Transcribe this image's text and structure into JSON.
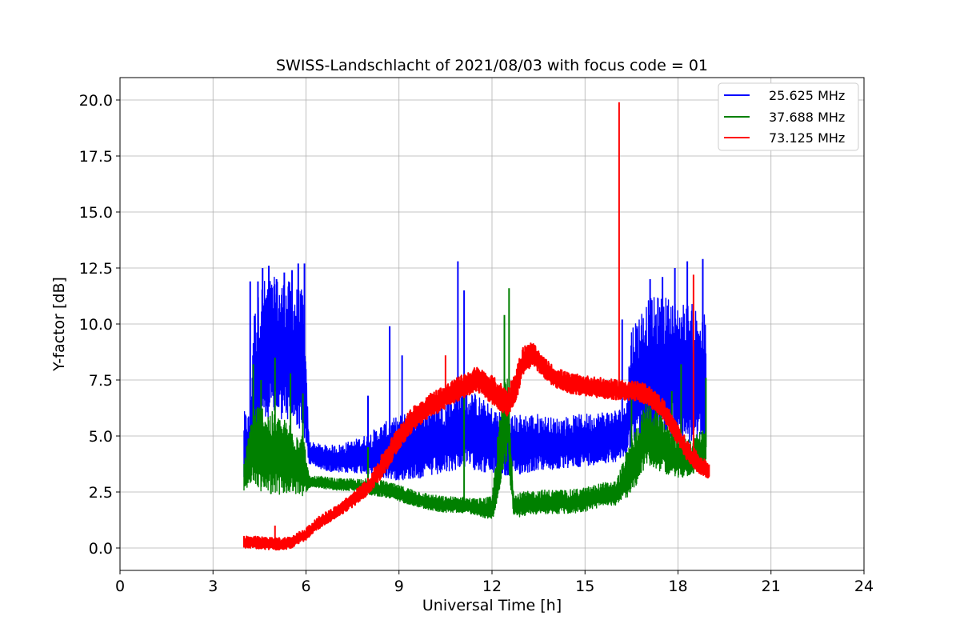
{
  "chart_data": {
    "type": "line",
    "title": "SWISS-Landschlacht of 2021/08/03 with focus code = 01",
    "xlabel": "Universal Time [h]",
    "ylabel": "Y-factor [dB]",
    "xlim": [
      0,
      24
    ],
    "ylim": [
      -1,
      21
    ],
    "xticks": [
      0,
      3,
      6,
      9,
      12,
      15,
      18,
      21,
      24
    ],
    "xtick_labels": [
      "0",
      "3",
      "6",
      "9",
      "12",
      "15",
      "18",
      "21",
      "24"
    ],
    "yticks": [
      0.0,
      2.5,
      5.0,
      7.5,
      10.0,
      12.5,
      15.0,
      17.5,
      20.0
    ],
    "ytick_labels": [
      "0.0",
      "2.5",
      "5.0",
      "7.5",
      "10.0",
      "12.5",
      "15.0",
      "17.5",
      "20.0"
    ],
    "grid": true,
    "legend_position": "top-right",
    "series": [
      {
        "name": "25.625 MHz",
        "color": "#0000ff",
        "x": [
          4.0,
          4.2,
          4.3,
          4.6,
          5.0,
          5.5,
          5.9,
          6.1,
          6.5,
          7.0,
          7.5,
          8.0,
          8.5,
          9.0,
          9.5,
          10.0,
          10.5,
          11.0,
          11.5,
          12.0,
          12.5,
          13.0,
          13.5,
          14.0,
          14.5,
          15.0,
          15.5,
          16.0,
          16.3,
          16.5,
          17.0,
          17.5,
          18.0,
          18.5,
          18.9
        ],
        "y": [
          4.3,
          4.5,
          7.0,
          8.5,
          8.6,
          8.4,
          8.0,
          4.2,
          4.0,
          3.9,
          4.0,
          4.1,
          4.2,
          4.3,
          4.5,
          4.6,
          4.8,
          5.2,
          5.0,
          4.6,
          4.4,
          4.5,
          4.6,
          4.5,
          4.6,
          4.7,
          4.8,
          4.9,
          5.0,
          7.0,
          7.6,
          7.8,
          7.5,
          7.4,
          7.0
        ],
        "band": [
          1.8,
          1.5,
          3.5,
          3.5,
          3.5,
          3.5,
          3.5,
          0.6,
          0.6,
          0.7,
          0.8,
          1.0,
          1.4,
          1.6,
          1.8,
          1.8,
          1.9,
          2.0,
          1.9,
          1.7,
          1.5,
          1.5,
          1.4,
          1.3,
          1.3,
          1.3,
          1.3,
          1.3,
          1.3,
          3.0,
          3.5,
          3.5,
          3.5,
          3.5,
          3.5
        ]
      },
      {
        "name": "37.688 MHz",
        "color": "#008000",
        "x": [
          4.0,
          4.3,
          4.6,
          5.0,
          5.5,
          5.9,
          6.1,
          6.5,
          7.0,
          7.5,
          8.0,
          8.5,
          9.0,
          9.5,
          10.0,
          10.5,
          11.0,
          11.5,
          12.0,
          12.2,
          12.5,
          12.7,
          13.0,
          13.5,
          14.0,
          14.5,
          15.0,
          15.5,
          16.0,
          16.5,
          17.0,
          17.5,
          18.0,
          18.5,
          18.9
        ],
        "y": [
          3.1,
          4.5,
          4.2,
          4.0,
          3.8,
          3.6,
          2.9,
          2.9,
          2.8,
          2.8,
          2.7,
          2.6,
          2.4,
          2.2,
          2.0,
          1.9,
          1.9,
          1.8,
          1.7,
          3.5,
          6.0,
          1.8,
          1.9,
          2.0,
          2.0,
          2.0,
          2.1,
          2.3,
          2.4,
          3.5,
          5.0,
          4.5,
          3.9,
          4.0,
          4.5
        ],
        "band": [
          0.7,
          2.0,
          2.2,
          2.0,
          1.8,
          1.6,
          0.3,
          0.3,
          0.3,
          0.3,
          0.4,
          0.4,
          0.4,
          0.4,
          0.4,
          0.4,
          0.4,
          0.4,
          0.6,
          1.8,
          2.5,
          0.6,
          0.6,
          0.6,
          0.6,
          0.6,
          0.6,
          0.6,
          0.6,
          1.4,
          1.6,
          1.4,
          1.0,
          0.9,
          1.0
        ]
      },
      {
        "name": "73.125 MHz",
        "color": "#ff0000",
        "x": [
          4.0,
          4.5,
          5.0,
          5.5,
          6.0,
          6.5,
          7.0,
          7.5,
          8.0,
          8.5,
          9.0,
          9.5,
          10.0,
          10.5,
          11.0,
          11.5,
          12.0,
          12.5,
          12.8,
          13.0,
          13.3,
          13.6,
          14.0,
          14.5,
          15.0,
          15.5,
          16.0,
          16.5,
          17.0,
          17.5,
          18.0,
          18.3,
          18.6,
          18.9,
          19.0
        ],
        "y": [
          0.25,
          0.2,
          0.15,
          0.2,
          0.6,
          1.2,
          1.6,
          2.1,
          2.7,
          3.7,
          4.9,
          5.8,
          6.3,
          6.7,
          7.1,
          7.5,
          7.0,
          6.4,
          7.3,
          8.3,
          8.6,
          8.1,
          7.6,
          7.3,
          7.2,
          7.1,
          7.0,
          7.0,
          6.8,
          6.2,
          5.0,
          4.3,
          3.8,
          3.5,
          3.4
        ],
        "band": [
          0.3,
          0.3,
          0.3,
          0.3,
          0.3,
          0.3,
          0.3,
          0.35,
          0.4,
          0.6,
          0.6,
          0.6,
          0.6,
          0.6,
          0.6,
          0.6,
          0.7,
          0.7,
          0.8,
          0.7,
          0.6,
          0.5,
          0.5,
          0.5,
          0.5,
          0.5,
          0.5,
          0.5,
          0.5,
          0.5,
          0.5,
          0.5,
          0.5,
          0.4,
          0.4
        ]
      }
    ],
    "spikes": [
      {
        "series": "25.625 MHz",
        "x": [
          4.2,
          4.45,
          4.6,
          4.8,
          5.05,
          5.3,
          5.55,
          5.75,
          5.95,
          8.0,
          8.7,
          9.1,
          10.9,
          11.1,
          16.2,
          17.1,
          17.5,
          17.9,
          18.3,
          18.8
        ],
        "y": [
          11.9,
          11.9,
          12.5,
          12.6,
          12.0,
          12.3,
          12.4,
          12.7,
          12.7,
          6.8,
          9.9,
          8.6,
          12.8,
          11.5,
          10.2,
          12.0,
          12.1,
          12.5,
          12.8,
          12.9
        ]
      },
      {
        "series": "37.688 MHz",
        "x": [
          4.3,
          4.55,
          5.0,
          5.5,
          5.9,
          8.0,
          11.1,
          12.4,
          12.55,
          16.5,
          17.8,
          18.1,
          18.9
        ],
        "y": [
          8.2,
          7.5,
          8.5,
          7.8,
          6.9,
          4.5,
          7.7,
          10.4,
          11.6,
          7.0,
          7.0,
          8.2,
          7.6
        ]
      },
      {
        "series": "73.125 MHz",
        "x": [
          5.0,
          10.5,
          16.1,
          18.5
        ],
        "y": [
          1.0,
          8.6,
          19.9,
          12.2
        ]
      }
    ]
  }
}
